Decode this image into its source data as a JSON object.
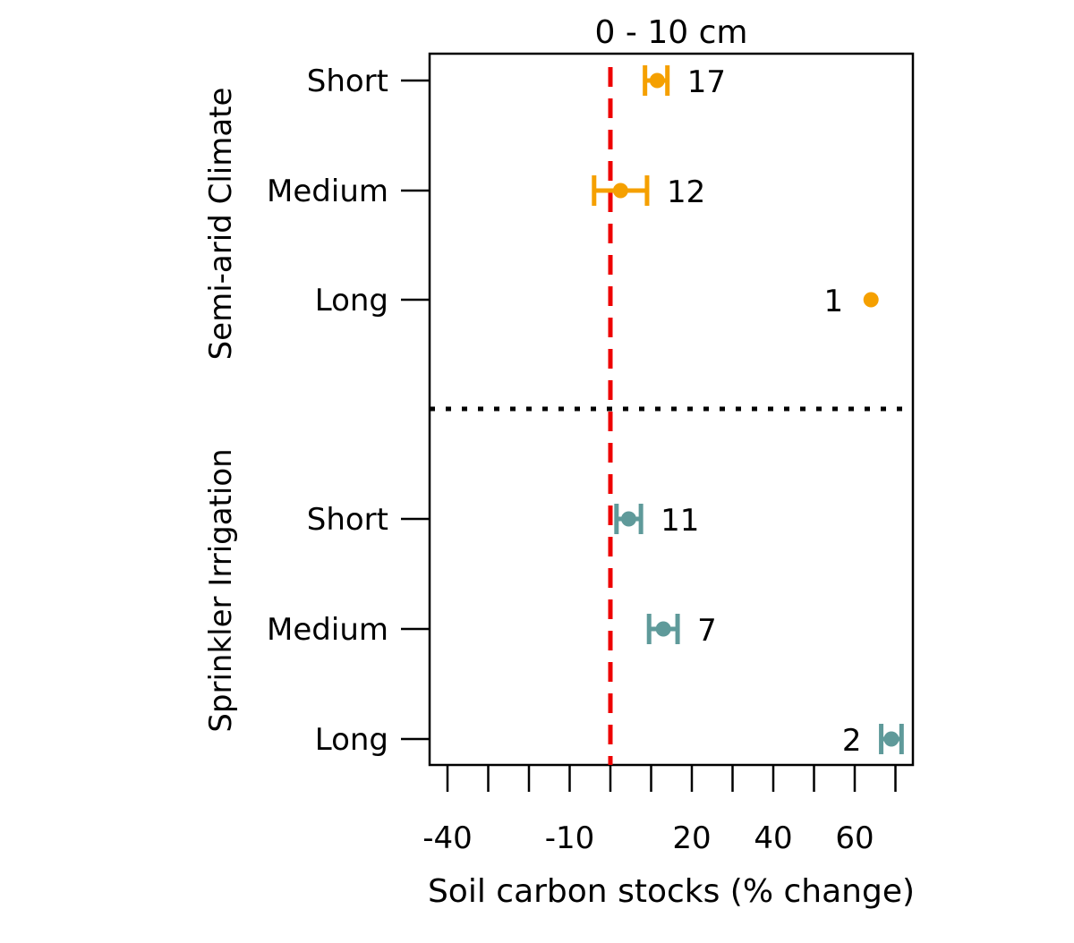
{
  "chart_data": {
    "type": "forest",
    "title": "0 - 10 cm",
    "xlabel": "Soil carbon stocks (% change)",
    "xlim": [
      -44,
      74
    ],
    "xticks": [
      -40,
      -30,
      -20,
      -10,
      0,
      10,
      20,
      30,
      40,
      50,
      60,
      70
    ],
    "xtick_labels": [
      {
        "value": -40,
        "label": "-40"
      },
      {
        "value": -10,
        "label": "-10"
      },
      {
        "value": 20,
        "label": "20"
      },
      {
        "value": 40,
        "label": "40"
      },
      {
        "value": 60,
        "label": "60"
      }
    ],
    "reference_line": {
      "value": 0,
      "color": "#ee0000",
      "style": "dashed"
    },
    "groups": [
      {
        "label": "Semi-arid Climate",
        "color": "#f5a000",
        "rows": [
          {
            "label": "Short",
            "estimate": 11.5,
            "ci_low": 8.5,
            "ci_high": 14,
            "n": "17"
          },
          {
            "label": "Medium",
            "estimate": 2.5,
            "ci_low": -4,
            "ci_high": 9,
            "n": "12"
          },
          {
            "label": "Long",
            "estimate": 64,
            "ci_low": null,
            "ci_high": null,
            "n": "1"
          }
        ]
      },
      {
        "label": "Sprinkler Irrigation",
        "color": "#5f9a9a",
        "rows": [
          {
            "label": "Short",
            "estimate": 4.5,
            "ci_low": 1.5,
            "ci_high": 7.5,
            "n": "11"
          },
          {
            "label": "Medium",
            "estimate": 13,
            "ci_low": 9.5,
            "ci_high": 16.5,
            "n": "7"
          },
          {
            "label": "Long",
            "estimate": 69,
            "ci_low": 66.5,
            "ci_high": 71.5,
            "n": "2"
          }
        ]
      }
    ],
    "group_separator": {
      "style": "dotted",
      "color": "#000000"
    }
  }
}
